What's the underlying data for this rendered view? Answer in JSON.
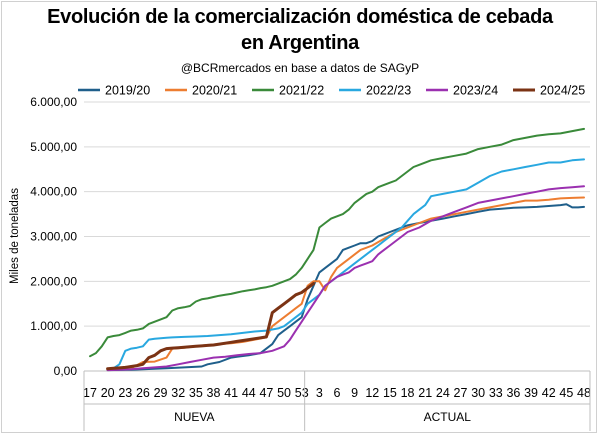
{
  "chart_data": {
    "type": "line",
    "title_line1": "Evolución de la comercialización doméstica de cebada",
    "title_line2": "en Argentina",
    "subtitle": "@BCRmercados en base a datos de SAGyP",
    "ylabel": "Miles de toneladas",
    "ylim": [
      0,
      6000
    ],
    "y_ticks": [
      "0,00",
      "1.000,00",
      "2.000,00",
      "3.000,00",
      "4.000,00",
      "5.000,00",
      "6.000,00"
    ],
    "x_tick_labels": [
      "17",
      "20",
      "23",
      "26",
      "29",
      "32",
      "35",
      "38",
      "41",
      "44",
      "47",
      "50",
      "53",
      "3",
      "6",
      "9",
      "12",
      "15",
      "18",
      "21",
      "24",
      "27",
      "30",
      "33",
      "36",
      "39",
      "42",
      "45",
      "48"
    ],
    "x_groups": [
      "NUEVA",
      "ACTUAL"
    ],
    "grid": "horizontal",
    "legend_position": "top",
    "series": [
      {
        "name": "2019/20",
        "color": "#1f5f8b",
        "x": [
          17,
          19,
          20,
          24,
          28,
          30,
          33,
          36,
          37,
          39,
          41,
          42,
          44,
          46,
          48,
          49,
          50,
          51,
          52,
          53,
          1,
          2,
          3,
          4,
          5,
          6,
          7,
          8,
          9,
          10,
          11,
          12,
          13,
          14,
          15,
          16,
          17,
          18,
          20,
          22,
          24,
          26,
          28,
          30,
          32,
          34,
          36,
          38,
          40,
          42,
          44,
          45,
          46,
          47,
          48
        ],
        "y": [
          null,
          null,
          20,
          30,
          50,
          60,
          80,
          100,
          150,
          200,
          300,
          320,
          350,
          400,
          600,
          800,
          900,
          1000,
          1100,
          1200,
          1600,
          1900,
          2200,
          2300,
          2400,
          2500,
          2700,
          2750,
          2800,
          2850,
          2850,
          2900,
          3000,
          3050,
          3100,
          3150,
          3200,
          3250,
          3300,
          3350,
          3400,
          3450,
          3500,
          3550,
          3600,
          3620,
          3640,
          3650,
          3660,
          3680,
          3700,
          3720,
          3650,
          3650,
          3660
        ]
      },
      {
        "name": "2020/21",
        "color": "#ed7d31",
        "x": [
          20,
          22,
          24,
          26,
          28,
          30,
          31,
          33,
          35,
          37,
          39,
          41,
          43,
          45,
          47,
          48,
          49,
          50,
          51,
          52,
          53,
          1,
          2,
          3,
          4,
          5,
          6,
          8,
          10,
          12,
          14,
          16,
          18,
          20,
          22,
          24,
          26,
          28,
          30,
          32,
          34,
          36,
          38,
          40,
          42,
          44,
          46,
          48
        ],
        "y": [
          30,
          40,
          60,
          200,
          210,
          300,
          500,
          520,
          550,
          580,
          600,
          620,
          650,
          700,
          750,
          1000,
          1100,
          1200,
          1300,
          1400,
          1500,
          1900,
          2000,
          2000,
          1800,
          2100,
          2300,
          2500,
          2700,
          2800,
          2950,
          3100,
          3200,
          3300,
          3400,
          3450,
          3500,
          3550,
          3600,
          3650,
          3700,
          3750,
          3800,
          3800,
          3820,
          3850,
          3860,
          3870
        ]
      },
      {
        "name": "2021/22",
        "color": "#3a8a3a",
        "x": [
          17,
          18,
          19,
          20,
          21,
          22,
          23,
          24,
          25,
          26,
          27,
          28,
          29,
          30,
          31,
          32,
          33,
          34,
          35,
          36,
          37,
          38,
          39,
          40,
          41,
          42,
          43,
          44,
          45,
          46,
          47,
          48,
          49,
          50,
          51,
          52,
          53,
          1,
          2,
          3,
          4,
          5,
          6,
          7,
          8,
          9,
          10,
          11,
          12,
          13,
          14,
          15,
          16,
          17,
          18,
          19,
          20,
          22,
          24,
          26,
          28,
          30,
          32,
          34,
          36,
          38,
          40,
          42,
          44,
          46,
          48
        ],
        "y": [
          330,
          400,
          550,
          750,
          780,
          800,
          850,
          900,
          920,
          950,
          1050,
          1100,
          1150,
          1200,
          1350,
          1400,
          1420,
          1450,
          1550,
          1600,
          1620,
          1650,
          1680,
          1700,
          1720,
          1750,
          1780,
          1800,
          1820,
          1850,
          1870,
          1900,
          1950,
          2000,
          2050,
          2150,
          2300,
          2500,
          2700,
          3200,
          3300,
          3400,
          3450,
          3500,
          3600,
          3750,
          3850,
          3950,
          4000,
          4100,
          4150,
          4200,
          4250,
          4350,
          4450,
          4550,
          4600,
          4700,
          4750,
          4800,
          4850,
          4950,
          5000,
          5050,
          5150,
          5200,
          5250,
          5280,
          5300,
          5350,
          5400
        ]
      },
      {
        "name": "2022/23",
        "color": "#29a8e0",
        "x": [
          20,
          21,
          22,
          23,
          24,
          25,
          26,
          27,
          28,
          29,
          30,
          31,
          33,
          35,
          37,
          39,
          41,
          43,
          45,
          47,
          49,
          50,
          51,
          52,
          53,
          1,
          2,
          3,
          4,
          5,
          6,
          7,
          8,
          9,
          10,
          11,
          12,
          13,
          14,
          15,
          16,
          17,
          18,
          19,
          20,
          21,
          22,
          24,
          26,
          28,
          30,
          32,
          34,
          36,
          38,
          40,
          42,
          44,
          46,
          48
        ],
        "y": [
          50,
          60,
          150,
          450,
          500,
          520,
          550,
          700,
          720,
          730,
          740,
          750,
          760,
          770,
          780,
          800,
          820,
          850,
          880,
          900,
          950,
          1000,
          1100,
          1200,
          1300,
          1500,
          1600,
          1700,
          1900,
          2000,
          2100,
          2200,
          2300,
          2400,
          2500,
          2600,
          2700,
          2800,
          2900,
          3000,
          3100,
          3200,
          3350,
          3500,
          3600,
          3700,
          3900,
          3950,
          4000,
          4050,
          4200,
          4350,
          4450,
          4500,
          4550,
          4600,
          4650,
          4650,
          4700,
          4720
        ]
      },
      {
        "name": "2023/24",
        "color": "#9b30b0",
        "x": [
          20,
          22,
          24,
          26,
          28,
          30,
          32,
          34,
          36,
          38,
          40,
          42,
          44,
          46,
          48,
          49,
          50,
          51,
          52,
          53,
          1,
          2,
          3,
          4,
          5,
          6,
          7,
          8,
          9,
          10,
          11,
          12,
          13,
          14,
          15,
          16,
          17,
          18,
          20,
          22,
          24,
          26,
          28,
          30,
          32,
          34,
          36,
          38,
          40,
          42,
          44,
          46,
          48
        ],
        "y": [
          20,
          30,
          40,
          60,
          80,
          100,
          150,
          200,
          250,
          300,
          320,
          350,
          380,
          400,
          450,
          500,
          550,
          700,
          900,
          1100,
          1300,
          1500,
          1700,
          1900,
          2000,
          2100,
          2150,
          2200,
          2300,
          2350,
          2400,
          2450,
          2600,
          2700,
          2800,
          2900,
          3000,
          3100,
          3200,
          3350,
          3450,
          3550,
          3650,
          3750,
          3800,
          3850,
          3900,
          3950,
          4000,
          4050,
          4080,
          4100,
          4120
        ]
      },
      {
        "name": "2024/25",
        "color": "#7b3314",
        "x": [
          20,
          21,
          22,
          23,
          24,
          25,
          26,
          27,
          28,
          29,
          30,
          31,
          32,
          33,
          34,
          35,
          36,
          37,
          38,
          39,
          40,
          41,
          42,
          43,
          44,
          45,
          46,
          47,
          48,
          49,
          50,
          51,
          52,
          53,
          1,
          2
        ],
        "y": [
          50,
          60,
          70,
          80,
          100,
          120,
          150,
          300,
          350,
          450,
          500,
          510,
          520,
          530,
          540,
          550,
          560,
          570,
          580,
          600,
          620,
          640,
          660,
          680,
          700,
          720,
          740,
          760,
          1300,
          1400,
          1500,
          1600,
          1700,
          1750,
          1850,
          1950
        ]
      }
    ]
  }
}
